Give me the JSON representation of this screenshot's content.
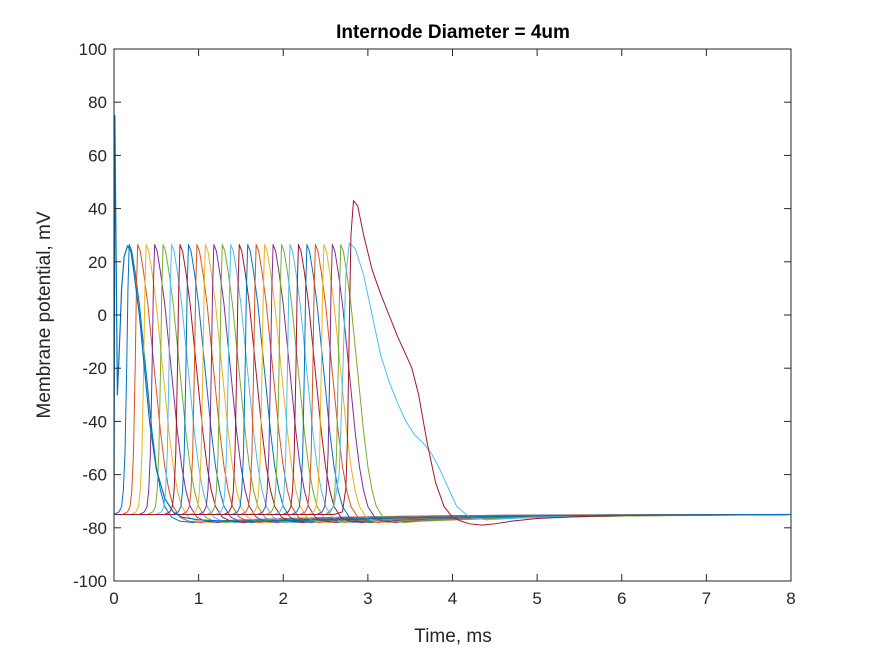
{
  "chart_data": {
    "type": "line",
    "title": "Internode Diameter = 4um",
    "xlabel": "Time, ms",
    "ylabel": "Membrane potential, mV",
    "xlim": [
      0,
      8
    ],
    "ylim": [
      -100,
      100
    ],
    "xticks": [
      0,
      1,
      2,
      3,
      4,
      5,
      6,
      7,
      8
    ],
    "yticks": [
      -100,
      -80,
      -60,
      -40,
      -20,
      0,
      20,
      40,
      60,
      80,
      100
    ],
    "grid": false,
    "box": true,
    "rest_potential": -75,
    "colors": [
      "#0072BD",
      "#D95319",
      "#EDB120",
      "#7E2F8E",
      "#77AC30",
      "#4DBEEE",
      "#A2142F"
    ],
    "stimulus_trace": {
      "x": [
        0,
        0.01,
        0.02,
        0.04,
        0.06,
        0.09,
        0.12,
        0.16,
        0.2,
        0.24,
        0.3,
        0.36,
        0.42,
        0.5,
        0.6,
        0.7,
        0.8,
        1.0,
        1.3,
        1.8,
        2.4,
        3.0,
        4.0,
        5.0,
        8.0
      ],
      "y": [
        -75,
        75,
        40,
        -30,
        -15,
        10,
        22,
        26,
        24,
        15,
        0,
        -20,
        -40,
        -58,
        -69,
        -74,
        -76,
        -77,
        -77.5,
        -77.5,
        -77,
        -76.5,
        -76,
        -75.5,
        -75
      ]
    },
    "series": [
      {
        "peak_t": 0.18,
        "color": "#0072BD"
      },
      {
        "peak_t": 0.28,
        "color": "#D95319"
      },
      {
        "peak_t": 0.38,
        "color": "#EDB120"
      },
      {
        "peak_t": 0.48,
        "color": "#7E2F8E"
      },
      {
        "peak_t": 0.58,
        "color": "#77AC30"
      },
      {
        "peak_t": 0.68,
        "color": "#4DBEEE"
      },
      {
        "peak_t": 0.78,
        "color": "#A2142F"
      },
      {
        "peak_t": 0.88,
        "color": "#0072BD"
      },
      {
        "peak_t": 0.98,
        "color": "#D95319"
      },
      {
        "peak_t": 1.08,
        "color": "#EDB120"
      },
      {
        "peak_t": 1.18,
        "color": "#7E2F8E"
      },
      {
        "peak_t": 1.28,
        "color": "#77AC30"
      },
      {
        "peak_t": 1.38,
        "color": "#4DBEEE"
      },
      {
        "peak_t": 1.48,
        "color": "#A2142F"
      },
      {
        "peak_t": 1.58,
        "color": "#0072BD"
      },
      {
        "peak_t": 1.68,
        "color": "#D95319"
      },
      {
        "peak_t": 1.78,
        "color": "#EDB120"
      },
      {
        "peak_t": 1.88,
        "color": "#7E2F8E"
      },
      {
        "peak_t": 1.98,
        "color": "#77AC30"
      },
      {
        "peak_t": 2.08,
        "color": "#4DBEEE"
      },
      {
        "peak_t": 2.18,
        "color": "#A2142F"
      },
      {
        "peak_t": 2.28,
        "color": "#0072BD"
      },
      {
        "peak_t": 2.38,
        "color": "#D95319"
      },
      {
        "peak_t": 2.48,
        "color": "#EDB120"
      },
      {
        "peak_t": 2.58,
        "color": "#7E2F8E"
      },
      {
        "peak_t": 2.68,
        "color": "#77AC30"
      }
    ],
    "late_traces": [
      {
        "color": "#4DBEEE",
        "x": [
          2.5,
          2.6,
          2.66,
          2.7,
          2.74,
          2.78,
          2.85,
          2.95,
          3.05,
          3.15,
          3.25,
          3.35,
          3.45,
          3.55,
          3.65,
          3.75,
          3.85,
          3.95,
          4.05,
          4.2,
          4.4,
          4.7,
          5.0,
          5.5,
          6.0,
          7.0,
          8.0
        ],
        "y": [
          -75,
          -72,
          -60,
          -25,
          15,
          27,
          25,
          15,
          0,
          -15,
          -25,
          -33,
          -40,
          -45,
          -48,
          -52,
          -58,
          -65,
          -72,
          -76,
          -77,
          -76.5,
          -76,
          -75.6,
          -75.3,
          -75.1,
          -75
        ]
      },
      {
        "color": "#A2142F",
        "x": [
          2.6,
          2.7,
          2.74,
          2.76,
          2.78,
          2.8,
          2.83,
          2.88,
          2.95,
          3.05,
          3.15,
          3.25,
          3.35,
          3.45,
          3.52,
          3.6,
          3.7,
          3.8,
          3.9,
          4.0,
          4.1,
          4.2,
          4.35,
          4.5,
          4.7,
          5.0,
          5.5,
          6.0,
          6.5,
          7.0,
          8.0
        ],
        "y": [
          -75,
          -74,
          -65,
          -45,
          -5,
          30,
          43,
          41,
          30,
          17,
          8,
          0,
          -8,
          -15,
          -20,
          -30,
          -48,
          -63,
          -72,
          -76,
          -77.5,
          -78.5,
          -79,
          -78.5,
          -77.5,
          -76.5,
          -75.8,
          -75.4,
          -75.2,
          -75.1,
          -75
        ]
      }
    ]
  }
}
